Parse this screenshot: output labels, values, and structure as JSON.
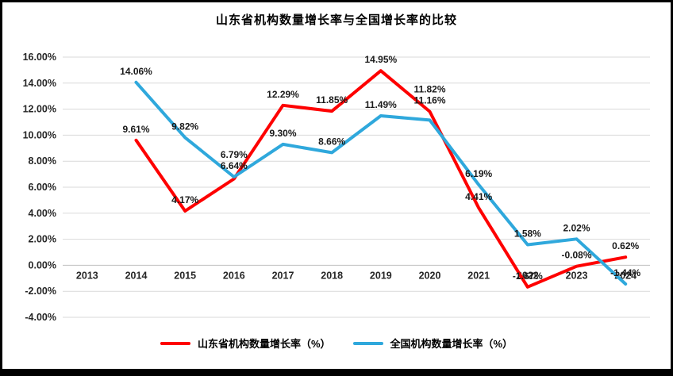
{
  "chart_data": {
    "type": "line",
    "title": "山东省机构数量增长率与全国增长率的比较",
    "categories": [
      "2013",
      "2014",
      "2015",
      "2016",
      "2017",
      "2018",
      "2019",
      "2020",
      "2021",
      "2022",
      "2023",
      "2024"
    ],
    "series": [
      {
        "name": "山东省机构数量增长率（%）",
        "color": "#FE0000",
        "values": [
          null,
          9.61,
          4.17,
          6.64,
          12.29,
          11.85,
          14.95,
          11.82,
          4.41,
          -1.67,
          -0.08,
          0.62
        ]
      },
      {
        "name": "全国机构数量增长率（%）",
        "color": "#2FA8DC",
        "values": [
          null,
          14.06,
          9.82,
          6.79,
          9.3,
          8.66,
          11.49,
          11.16,
          6.19,
          1.58,
          2.02,
          -1.44
        ]
      }
    ],
    "ylim": [
      -4,
      16
    ],
    "ytick_step": 2,
    "ytick_labels": [
      "16.00%",
      "14.00%",
      "12.00%",
      "10.00%",
      "8.00%",
      "6.00%",
      "4.00%",
      "2.00%",
      "0.00%",
      "-2.00%",
      "-4.00%"
    ],
    "grid": true,
    "gridline_color": "#D9D9D9",
    "label_suffix": "%",
    "legend_position": "bottom"
  }
}
